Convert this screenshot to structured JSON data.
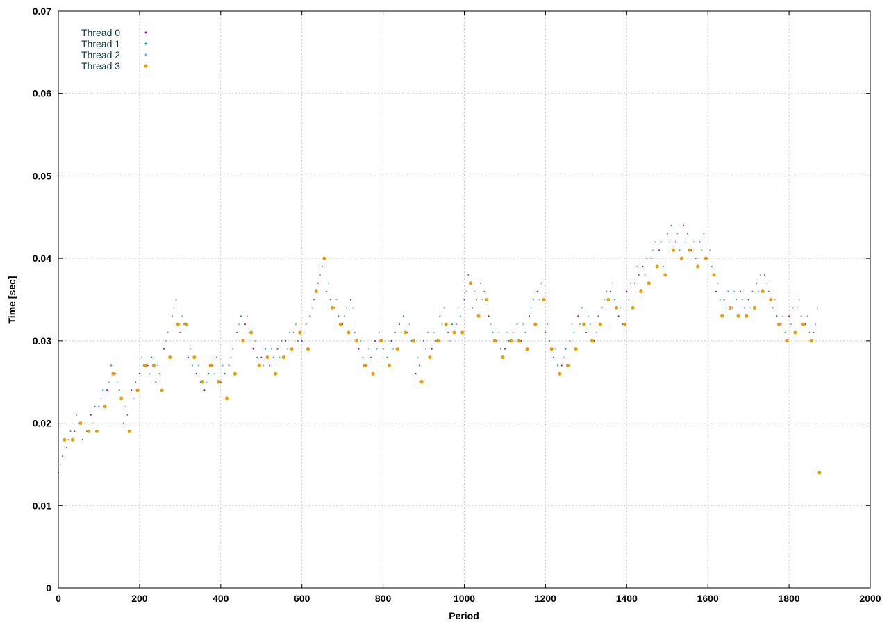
{
  "chart_data": {
    "type": "scatter",
    "title": "",
    "xlabel": "Period",
    "ylabel": "Time [sec]",
    "xlim": [
      0,
      2000
    ],
    "ylim": [
      0,
      0.07
    ],
    "x_ticks": [
      "0",
      "200",
      "400",
      "600",
      "800",
      "1000",
      "1200",
      "1400",
      "1600",
      "1800",
      "2000"
    ],
    "y_ticks": [
      "0",
      "0.01",
      "0.02",
      "0.03",
      "0.04",
      "0.05",
      "0.06",
      "0.07"
    ],
    "grid": true,
    "legend": "top-left",
    "series": [
      {
        "name": "Thread 0",
        "color": "#9400d3",
        "marker_size": 1,
        "x": [
          0,
          20,
          40,
          60,
          80,
          100,
          120,
          140,
          160,
          180,
          200,
          220,
          240,
          260,
          280,
          300,
          320,
          340,
          360,
          380,
          400,
          420,
          440,
          460,
          480,
          500,
          520,
          540,
          560,
          580,
          600,
          620,
          640,
          660,
          680,
          700,
          720,
          740,
          760,
          780,
          800,
          820,
          840,
          860,
          880,
          900,
          920,
          940,
          960,
          980,
          1000,
          1020,
          1040,
          1060,
          1080,
          1100,
          1120,
          1140,
          1160,
          1180,
          1200,
          1220,
          1240,
          1260,
          1280,
          1300,
          1320,
          1340,
          1360,
          1380,
          1400,
          1420,
          1440,
          1460,
          1480,
          1500,
          1520,
          1540,
          1560,
          1580,
          1600,
          1620,
          1640,
          1660,
          1680,
          1700,
          1720,
          1740,
          1760,
          1780,
          1800,
          1820,
          1840,
          1860
        ],
        "y": [
          0.014,
          0.017,
          0.019,
          0.018,
          0.021,
          0.022,
          0.024,
          0.026,
          0.02,
          0.024,
          0.026,
          0.027,
          0.025,
          0.029,
          0.033,
          0.031,
          0.028,
          0.026,
          0.024,
          0.027,
          0.025,
          0.027,
          0.031,
          0.032,
          0.029,
          0.028,
          0.027,
          0.029,
          0.03,
          0.031,
          0.03,
          0.033,
          0.037,
          0.036,
          0.034,
          0.032,
          0.035,
          0.029,
          0.027,
          0.03,
          0.029,
          0.03,
          0.032,
          0.031,
          0.026,
          0.03,
          0.029,
          0.033,
          0.031,
          0.032,
          0.035,
          0.034,
          0.037,
          0.033,
          0.03,
          0.029,
          0.031,
          0.03,
          0.033,
          0.036,
          0.031,
          0.028,
          0.027,
          0.03,
          0.033,
          0.031,
          0.03,
          0.034,
          0.036,
          0.033,
          0.036,
          0.037,
          0.039,
          0.04,
          0.041,
          0.043,
          0.042,
          0.044,
          0.041,
          0.042,
          0.04,
          0.036,
          0.035,
          0.034,
          0.036,
          0.035,
          0.037,
          0.038,
          0.034,
          0.032,
          0.033,
          0.034,
          0.032,
          0.031
        ]
      },
      {
        "name": "Thread 1",
        "color": "#009e73",
        "marker_size": 1,
        "x": [
          10,
          30,
          50,
          70,
          90,
          110,
          130,
          150,
          170,
          190,
          210,
          230,
          250,
          270,
          290,
          310,
          330,
          350,
          370,
          390,
          410,
          430,
          450,
          470,
          490,
          510,
          530,
          550,
          570,
          590,
          610,
          630,
          650,
          670,
          690,
          710,
          730,
          750,
          770,
          790,
          810,
          830,
          850,
          870,
          890,
          910,
          930,
          950,
          970,
          990,
          1010,
          1030,
          1050,
          1070,
          1090,
          1110,
          1130,
          1150,
          1170,
          1190,
          1210,
          1230,
          1250,
          1270,
          1290,
          1310,
          1330,
          1350,
          1370,
          1390,
          1410,
          1430,
          1450,
          1470,
          1490,
          1510,
          1530,
          1550,
          1570,
          1590,
          1610,
          1630,
          1650,
          1670,
          1690,
          1710,
          1730,
          1750,
          1770,
          1790,
          1810,
          1830,
          1850,
          1870
        ],
        "y": [
          0.016,
          0.019,
          0.02,
          0.019,
          0.022,
          0.024,
          0.027,
          0.024,
          0.021,
          0.025,
          0.027,
          0.028,
          0.026,
          0.031,
          0.035,
          0.032,
          0.027,
          0.025,
          0.026,
          0.028,
          0.026,
          0.029,
          0.033,
          0.031,
          0.028,
          0.029,
          0.028,
          0.03,
          0.031,
          0.03,
          0.032,
          0.035,
          0.039,
          0.035,
          0.033,
          0.034,
          0.031,
          0.028,
          0.028,
          0.031,
          0.028,
          0.031,
          0.033,
          0.03,
          0.027,
          0.031,
          0.03,
          0.034,
          0.032,
          0.033,
          0.038,
          0.035,
          0.036,
          0.031,
          0.029,
          0.03,
          0.032,
          0.031,
          0.035,
          0.037,
          0.03,
          0.027,
          0.029,
          0.031,
          0.034,
          0.032,
          0.033,
          0.036,
          0.035,
          0.032,
          0.037,
          0.038,
          0.04,
          0.042,
          0.039,
          0.044,
          0.041,
          0.043,
          0.04,
          0.043,
          0.039,
          0.035,
          0.036,
          0.035,
          0.034,
          0.036,
          0.038,
          0.036,
          0.033,
          0.031,
          0.034,
          0.033,
          0.031,
          0.034
        ]
      },
      {
        "name": "Thread 2",
        "color": "#56b4e9",
        "marker_size": 1,
        "x": [
          5,
          25,
          45,
          65,
          85,
          105,
          125,
          145,
          165,
          185,
          205,
          225,
          245,
          265,
          285,
          305,
          325,
          345,
          365,
          385,
          405,
          425,
          445,
          465,
          485,
          505,
          525,
          545,
          565,
          585,
          605,
          625,
          645,
          665,
          685,
          705,
          725,
          745,
          765,
          785,
          805,
          825,
          845,
          865,
          885,
          905,
          925,
          945,
          965,
          985,
          1005,
          1025,
          1045,
          1065,
          1085,
          1105,
          1125,
          1145,
          1165,
          1185,
          1205,
          1225,
          1245,
          1265,
          1285,
          1305,
          1325,
          1345,
          1365,
          1385,
          1405,
          1425,
          1445,
          1465,
          1485,
          1505,
          1525,
          1545,
          1565,
          1585,
          1605,
          1625,
          1645,
          1665,
          1685,
          1705,
          1725,
          1745,
          1765,
          1785,
          1805,
          1825,
          1845,
          1865
        ],
        "y": [
          0.015,
          0.018,
          0.021,
          0.02,
          0.02,
          0.023,
          0.025,
          0.025,
          0.022,
          0.023,
          0.028,
          0.026,
          0.027,
          0.03,
          0.034,
          0.033,
          0.029,
          0.027,
          0.025,
          0.026,
          0.027,
          0.028,
          0.032,
          0.033,
          0.03,
          0.027,
          0.029,
          0.028,
          0.029,
          0.032,
          0.031,
          0.034,
          0.038,
          0.037,
          0.035,
          0.033,
          0.034,
          0.03,
          0.029,
          0.029,
          0.03,
          0.029,
          0.031,
          0.032,
          0.028,
          0.029,
          0.031,
          0.032,
          0.03,
          0.034,
          0.036,
          0.036,
          0.035,
          0.032,
          0.031,
          0.031,
          0.03,
          0.032,
          0.034,
          0.035,
          0.032,
          0.029,
          0.028,
          0.032,
          0.032,
          0.033,
          0.031,
          0.035,
          0.037,
          0.034,
          0.035,
          0.039,
          0.038,
          0.041,
          0.042,
          0.042,
          0.043,
          0.042,
          0.042,
          0.041,
          0.041,
          0.037,
          0.034,
          0.036,
          0.035,
          0.034,
          0.036,
          0.037,
          0.035,
          0.033,
          0.032,
          0.035,
          0.033,
          0.032
        ]
      },
      {
        "name": "Thread 3",
        "color": "#e69f00",
        "marker_size": 2.5,
        "x": [
          15,
          35,
          55,
          75,
          95,
          115,
          135,
          155,
          175,
          195,
          215,
          235,
          255,
          275,
          295,
          315,
          335,
          355,
          375,
          395,
          415,
          435,
          455,
          475,
          495,
          515,
          535,
          555,
          575,
          595,
          615,
          635,
          655,
          675,
          695,
          715,
          735,
          755,
          775,
          795,
          815,
          835,
          855,
          875,
          895,
          915,
          935,
          955,
          975,
          995,
          1015,
          1035,
          1055,
          1075,
          1095,
          1115,
          1135,
          1155,
          1175,
          1195,
          1215,
          1235,
          1255,
          1275,
          1295,
          1315,
          1335,
          1355,
          1375,
          1395,
          1415,
          1435,
          1455,
          1475,
          1495,
          1515,
          1535,
          1555,
          1575,
          1595,
          1615,
          1635,
          1655,
          1675,
          1695,
          1715,
          1735,
          1755,
          1775,
          1795,
          1815,
          1835,
          1855,
          1875
        ],
        "y": [
          0.018,
          0.018,
          0.02,
          0.019,
          0.019,
          0.022,
          0.026,
          0.023,
          0.019,
          0.024,
          0.027,
          0.027,
          0.024,
          0.028,
          0.032,
          0.032,
          0.028,
          0.025,
          0.027,
          0.025,
          0.023,
          0.026,
          0.03,
          0.031,
          0.027,
          0.028,
          0.026,
          0.028,
          0.029,
          0.031,
          0.029,
          0.036,
          0.04,
          0.034,
          0.032,
          0.031,
          0.03,
          0.027,
          0.026,
          0.03,
          0.027,
          0.029,
          0.031,
          0.03,
          0.025,
          0.028,
          0.03,
          0.032,
          0.031,
          0.031,
          0.037,
          0.033,
          0.035,
          0.03,
          0.028,
          0.03,
          0.03,
          0.029,
          0.032,
          0.035,
          0.029,
          0.026,
          0.027,
          0.029,
          0.032,
          0.03,
          0.032,
          0.035,
          0.034,
          0.032,
          0.034,
          0.036,
          0.037,
          0.039,
          0.038,
          0.041,
          0.04,
          0.041,
          0.039,
          0.04,
          0.038,
          0.033,
          0.034,
          0.033,
          0.033,
          0.034,
          0.036,
          0.035,
          0.032,
          0.03,
          0.031,
          0.032,
          0.03,
          0.014
        ]
      }
    ]
  }
}
